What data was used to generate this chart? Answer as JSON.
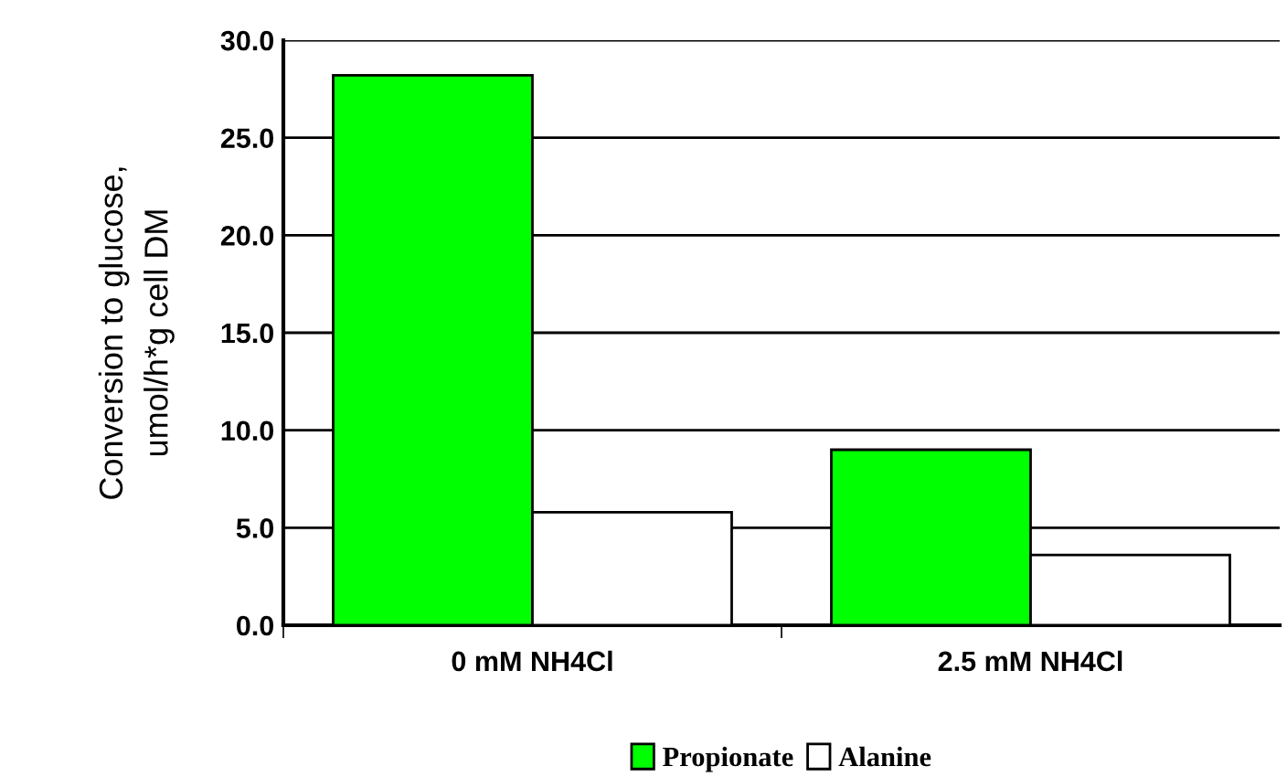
{
  "chart_data": {
    "type": "bar",
    "ylabel": "Conversion to glucose,\numol/h*g cell DM",
    "categories": [
      "0 mM NH4Cl",
      "2.5 mM NH4Cl"
    ],
    "series": [
      {
        "name": "Propionate",
        "color": "#00ff00",
        "values": [
          28.2,
          9.0
        ]
      },
      {
        "name": "Alanine",
        "color": "#ffffff",
        "values": [
          5.8,
          3.6
        ]
      }
    ],
    "ylim": [
      0,
      30
    ],
    "yticks": [
      {
        "value": 0,
        "label": "0.0"
      },
      {
        "value": 5,
        "label": "5.0"
      },
      {
        "value": 10,
        "label": "10.0"
      },
      {
        "value": 15,
        "label": "15.0"
      },
      {
        "value": 20,
        "label": "20.0"
      },
      {
        "value": 25,
        "label": "25.0"
      },
      {
        "value": 30,
        "label": "30.0"
      }
    ],
    "grid": "y",
    "legend": "bottom"
  }
}
